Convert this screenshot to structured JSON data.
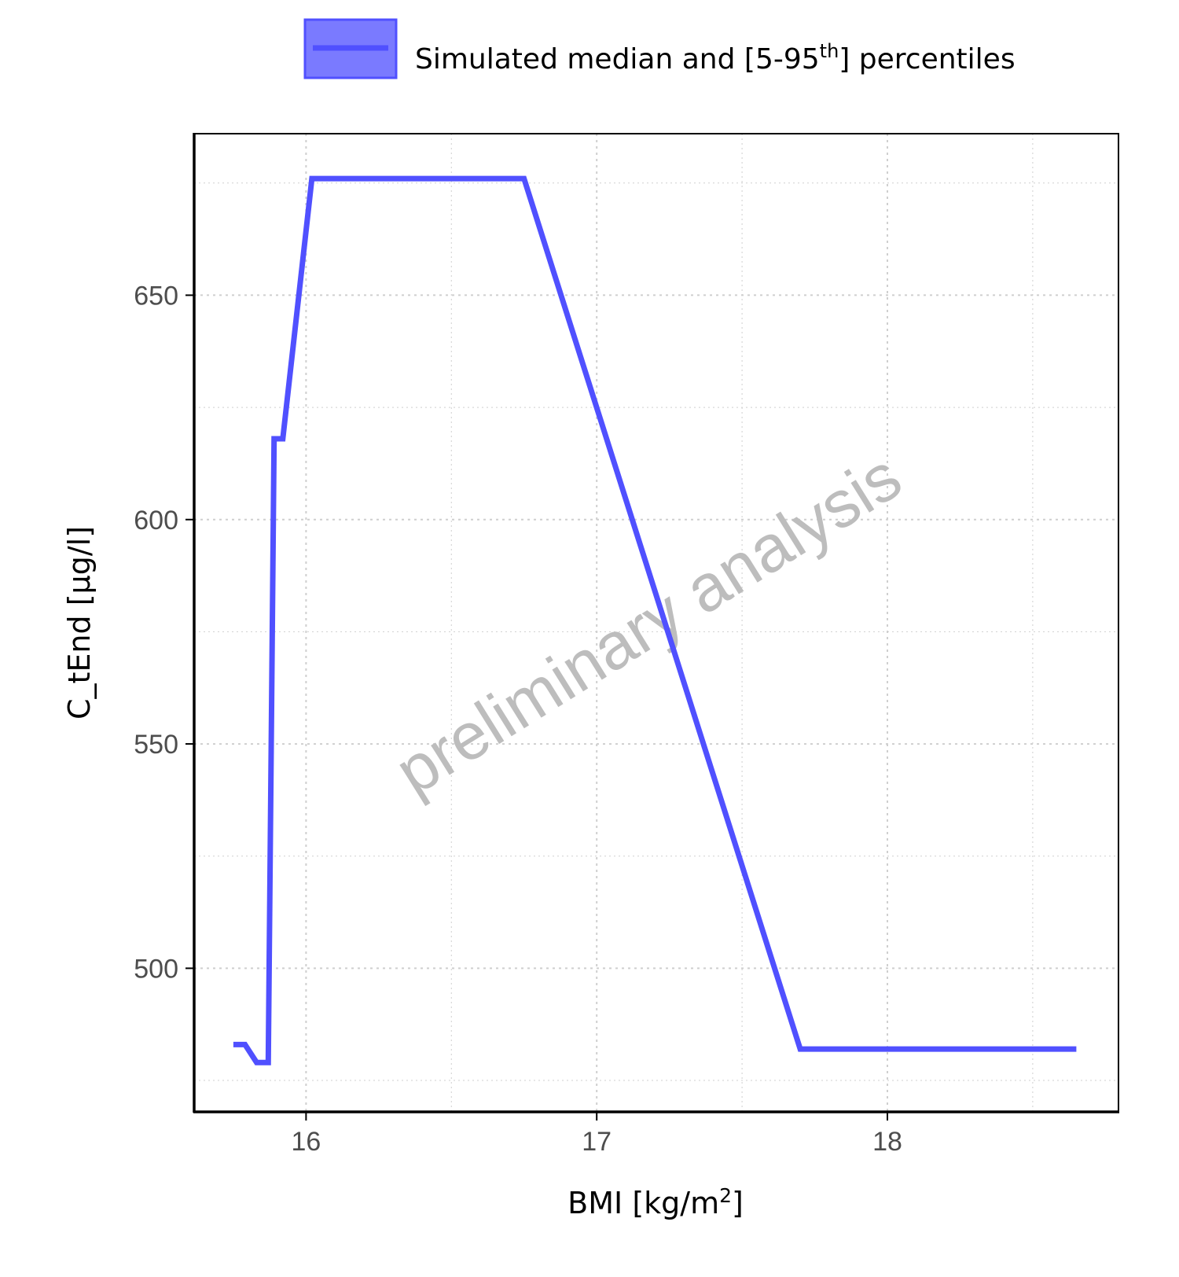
{
  "colors": {
    "series": "#5050ff",
    "series_fill": "#7a7aff",
    "grid": "#cfcfcf",
    "axis": "#000000",
    "watermark": "#bdbdbd"
  },
  "legend": {
    "label_pre": "Simulated median and [5-95",
    "label_sup": "th",
    "label_post": "] percentiles"
  },
  "axes": {
    "xlabel_pre": "BMI [kg/m",
    "xlabel_sup": "2",
    "xlabel_post": "]",
    "ylabel": "C_tEnd [µg/l]"
  },
  "watermark": "preliminary analysis",
  "chart_data": {
    "type": "line",
    "x_ticks": [
      "16",
      "17",
      "18"
    ],
    "y_ticks": [
      "500",
      "550",
      "600",
      "650"
    ],
    "xlim": [
      15.615,
      18.795
    ],
    "ylim": [
      468,
      686
    ],
    "grid": true,
    "legend_position": "top",
    "series": [
      {
        "name": "Simulated median and [5-95th] percentiles",
        "x": [
          15.75,
          15.79,
          15.83,
          15.87,
          15.89,
          15.92,
          16.02,
          16.75,
          17.7,
          18.65
        ],
        "y": [
          483,
          483,
          479,
          479,
          618,
          618,
          676,
          676,
          482,
          482
        ]
      }
    ]
  }
}
